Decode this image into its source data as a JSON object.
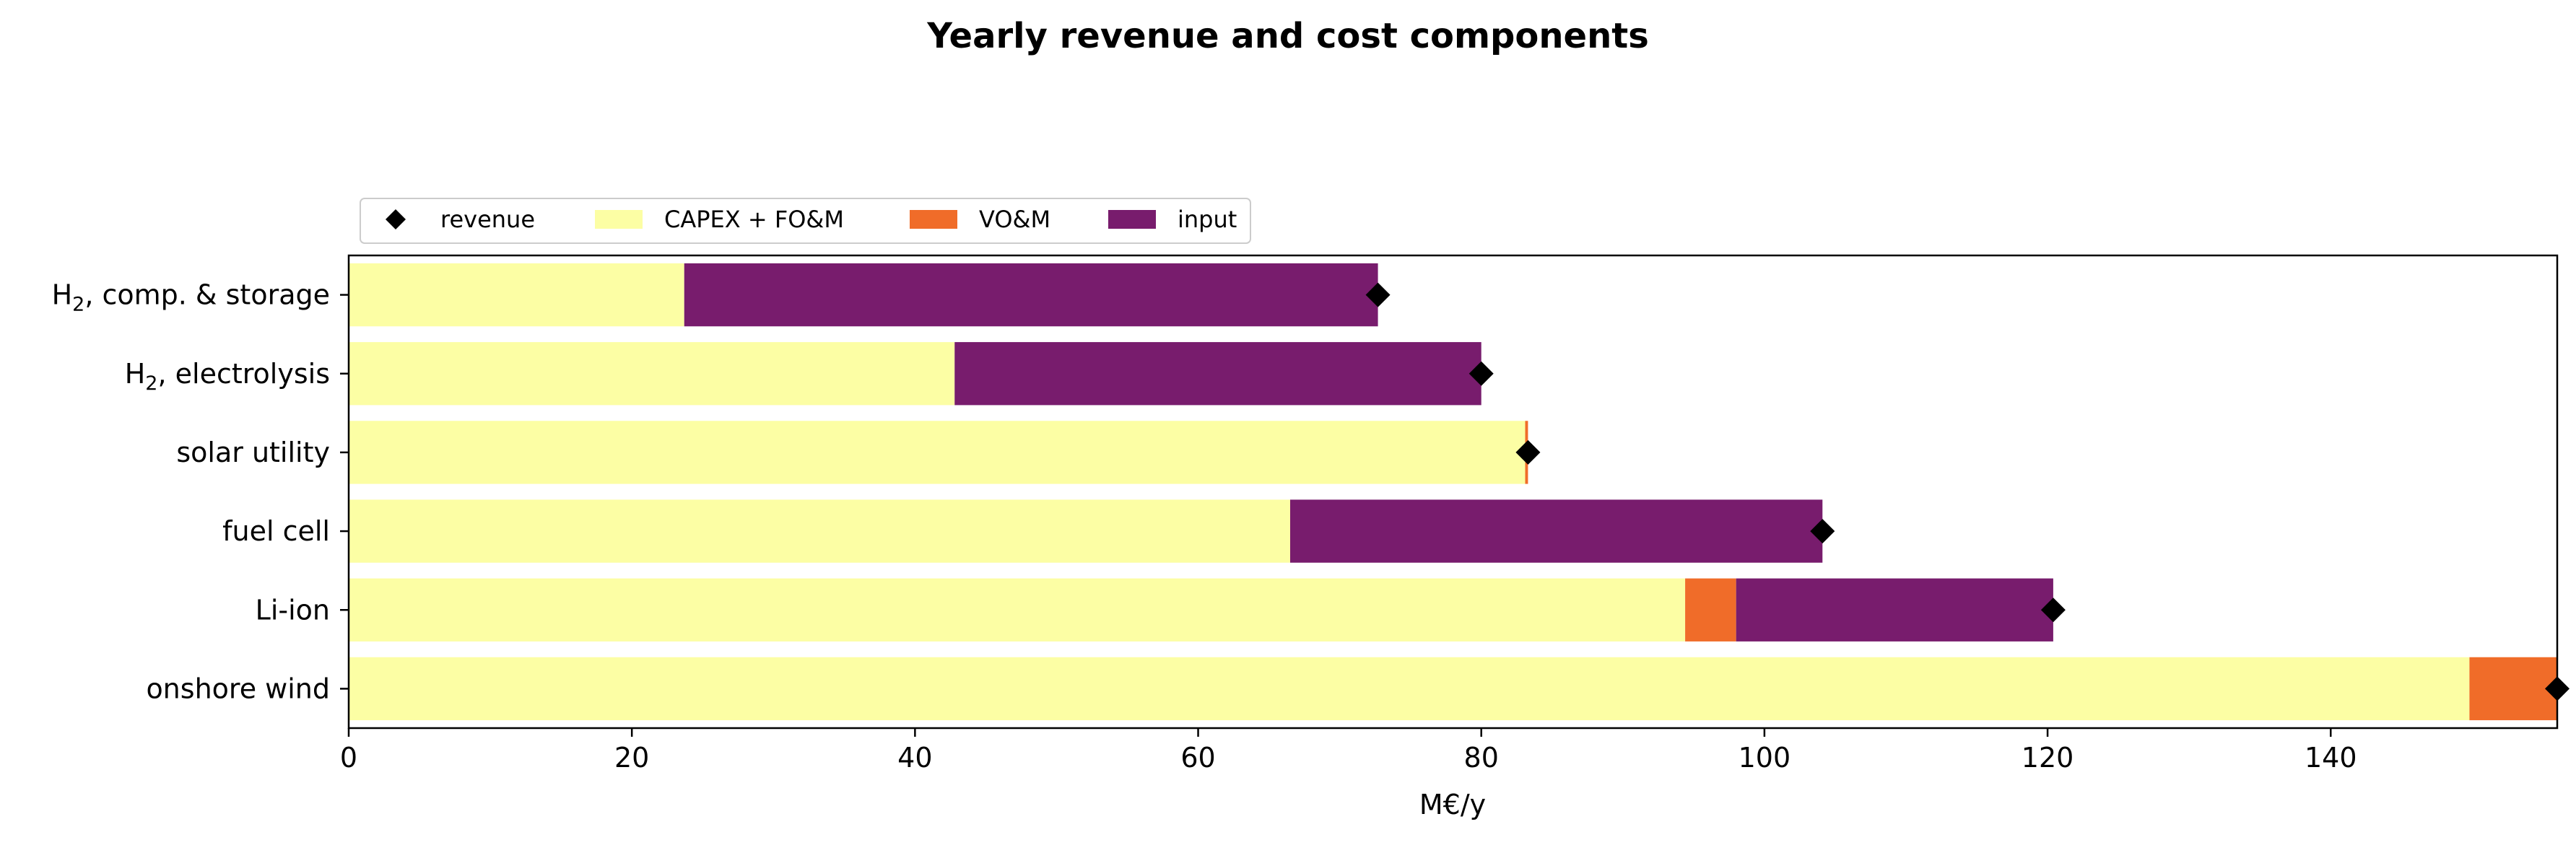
{
  "chart_data": {
    "type": "bar",
    "orientation": "horizontal",
    "stacked": true,
    "title": "Yearly revenue and cost components",
    "xlabel": "M€/y",
    "ylabel": "",
    "xlim": [
      0,
      156
    ],
    "xticks": [
      0,
      20,
      40,
      60,
      80,
      100,
      120,
      140
    ],
    "grid": false,
    "legend_placement": "top-left, above plot",
    "categories": [
      {
        "main": "H",
        "sub": "2",
        "rest": ", comp. & storage"
      },
      {
        "main": "H",
        "sub": "2",
        "rest": ", electrolysis"
      },
      {
        "main": "solar utility",
        "sub": "",
        "rest": ""
      },
      {
        "main": "fuel cell",
        "sub": "",
        "rest": ""
      },
      {
        "main": "Li-ion",
        "sub": "",
        "rest": ""
      },
      {
        "main": "onshore wind",
        "sub": "",
        "rest": ""
      }
    ],
    "series": [
      {
        "name": "CAPEX + FO&M",
        "color": "#fcfea4",
        "values": [
          23.7,
          42.8,
          83.1,
          66.5,
          94.4,
          149.8
        ]
      },
      {
        "name": "VO&M",
        "color": "#f06c29",
        "values": [
          0,
          0,
          0.2,
          0,
          3.6,
          6.3
        ]
      },
      {
        "name": "input",
        "color": "#781c6d",
        "values": [
          49.0,
          37.2,
          0,
          37.6,
          22.4,
          0
        ]
      }
    ],
    "revenue": {
      "name": "revenue",
      "color": "#000000",
      "marker": "diamond",
      "values": [
        72.7,
        80.0,
        83.3,
        104.1,
        120.4,
        156.0
      ]
    },
    "legend_order": [
      "revenue",
      "CAPEX + FO&M",
      "VO&M",
      "input"
    ]
  }
}
